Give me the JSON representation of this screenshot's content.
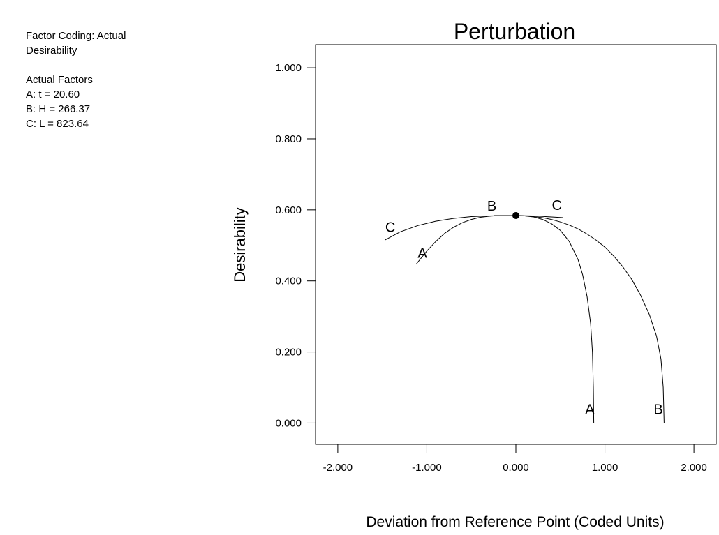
{
  "info": {
    "factor_coding": "Factor Coding: Actual",
    "response": "Desirability",
    "actual_factors_heading": "Actual Factors",
    "factors": [
      "A: t = 20.60",
      "B: H = 266.37",
      "C: L = 823.64"
    ]
  },
  "chart_data": {
    "type": "line",
    "title": "Perturbation",
    "xlabel": "Deviation from Reference Point (Coded Units)",
    "ylabel": "Desirability",
    "xlim": [
      -2.25,
      2.25
    ],
    "ylim": [
      -0.06,
      1.065
    ],
    "xticks": [
      -2.0,
      -1.0,
      0.0,
      1.0,
      2.0
    ],
    "xtick_labels": [
      "-2.000",
      "-1.000",
      "0.000",
      "1.000",
      "2.000"
    ],
    "yticks": [
      0.0,
      0.2,
      0.4,
      0.6,
      0.8,
      1.0
    ],
    "ytick_labels": [
      "0.000",
      "0.200",
      "0.400",
      "0.600",
      "0.800",
      "1.000"
    ],
    "reference_point": {
      "x": 0.0,
      "y": 0.584
    },
    "series": [
      {
        "name": "A",
        "points": [
          [
            -1.12,
            0.447
          ],
          [
            -1.0,
            0.484
          ],
          [
            -0.9,
            0.511
          ],
          [
            -0.8,
            0.534
          ],
          [
            -0.7,
            0.551
          ],
          [
            -0.6,
            0.564
          ],
          [
            -0.5,
            0.573
          ],
          [
            -0.4,
            0.579
          ],
          [
            -0.3,
            0.582
          ],
          [
            -0.2,
            0.584
          ],
          [
            -0.1,
            0.584
          ],
          [
            0.0,
            0.584
          ],
          [
            0.1,
            0.583
          ],
          [
            0.2,
            0.58
          ],
          [
            0.3,
            0.573
          ],
          [
            0.4,
            0.561
          ],
          [
            0.5,
            0.542
          ],
          [
            0.6,
            0.511
          ],
          [
            0.7,
            0.459
          ],
          [
            0.75,
            0.417
          ],
          [
            0.8,
            0.356
          ],
          [
            0.84,
            0.28
          ],
          [
            0.86,
            0.2
          ],
          [
            0.87,
            0.1
          ],
          [
            0.875,
            0.0
          ]
        ],
        "start_label": {
          "x": -1.05,
          "y": 0.465
        },
        "end_label": {
          "x": 0.83,
          "y": 0.025
        }
      },
      {
        "name": "B",
        "points": [
          [
            -0.25,
            0.584
          ],
          [
            0.0,
            0.584
          ],
          [
            0.1,
            0.583
          ],
          [
            0.2,
            0.581
          ],
          [
            0.3,
            0.578
          ],
          [
            0.4,
            0.573
          ],
          [
            0.5,
            0.566
          ],
          [
            0.6,
            0.557
          ],
          [
            0.7,
            0.546
          ],
          [
            0.8,
            0.532
          ],
          [
            0.9,
            0.515
          ],
          [
            1.0,
            0.495
          ],
          [
            1.1,
            0.47
          ],
          [
            1.2,
            0.44
          ],
          [
            1.3,
            0.405
          ],
          [
            1.4,
            0.36
          ],
          [
            1.5,
            0.305
          ],
          [
            1.58,
            0.245
          ],
          [
            1.63,
            0.18
          ],
          [
            1.655,
            0.1
          ],
          [
            1.665,
            0.0
          ]
        ],
        "start_label": {
          "x": -0.27,
          "y": 0.598
        },
        "end_label": {
          "x": 1.6,
          "y": 0.025
        }
      },
      {
        "name": "C",
        "points": [
          [
            -1.47,
            0.515
          ],
          [
            -1.3,
            0.538
          ],
          [
            -1.1,
            0.556
          ],
          [
            -0.9,
            0.568
          ],
          [
            -0.7,
            0.576
          ],
          [
            -0.5,
            0.581
          ],
          [
            -0.3,
            0.583
          ],
          [
            -0.1,
            0.584
          ],
          [
            0.0,
            0.584
          ],
          [
            0.2,
            0.583
          ],
          [
            0.4,
            0.58
          ],
          [
            0.53,
            0.578
          ]
        ],
        "start_label": {
          "x": -1.41,
          "y": 0.538
        },
        "end_label": {
          "x": 0.46,
          "y": 0.6
        }
      }
    ]
  }
}
